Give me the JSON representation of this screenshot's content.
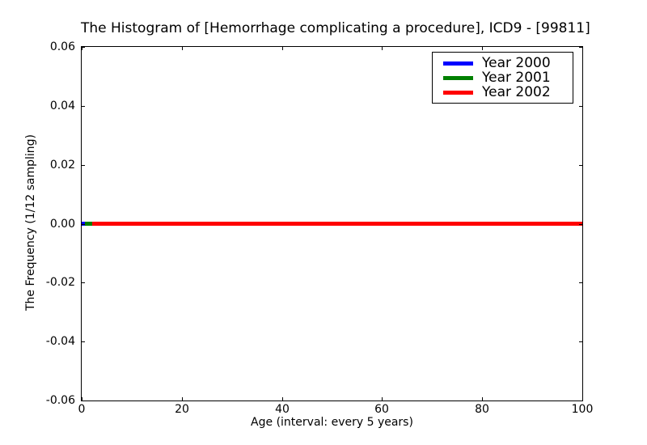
{
  "chart_data": {
    "type": "line",
    "title": "The Histogram of [Hemorrhage complicating a procedure], ICD9 - [99811]",
    "xlabel": "Age (interval: every 5 years)",
    "ylabel": "The Frequency (1/12 sampling)",
    "xlim": [
      0,
      100
    ],
    "ylim": [
      -0.06,
      0.06
    ],
    "grid": false,
    "legend_position": "upper right",
    "x_ticks": [
      {
        "value": 0,
        "label": "0"
      },
      {
        "value": 20,
        "label": "20"
      },
      {
        "value": 40,
        "label": "40"
      },
      {
        "value": 60,
        "label": "60"
      },
      {
        "value": 80,
        "label": "80"
      },
      {
        "value": 100,
        "label": "100"
      }
    ],
    "y_ticks": [
      {
        "value": 0.06,
        "label": "0.06"
      },
      {
        "value": 0.04,
        "label": "0.04"
      },
      {
        "value": 0.02,
        "label": "0.02"
      },
      {
        "value": 0.0,
        "label": "0.00"
      },
      {
        "value": -0.02,
        "label": "-0.02"
      },
      {
        "value": -0.04,
        "label": "-0.04"
      },
      {
        "value": -0.06,
        "label": "-0.06"
      }
    ],
    "series": [
      {
        "name": "Year 2000",
        "color": "#0000ff",
        "x": [
          0,
          100
        ],
        "y": [
          0,
          0
        ]
      },
      {
        "name": "Year 2001",
        "color": "#008000",
        "x": [
          0,
          100
        ],
        "y": [
          0,
          0
        ]
      },
      {
        "name": "Year 2002",
        "color": "#ff0000",
        "x": [
          0,
          100
        ],
        "y": [
          0,
          0
        ]
      }
    ]
  }
}
